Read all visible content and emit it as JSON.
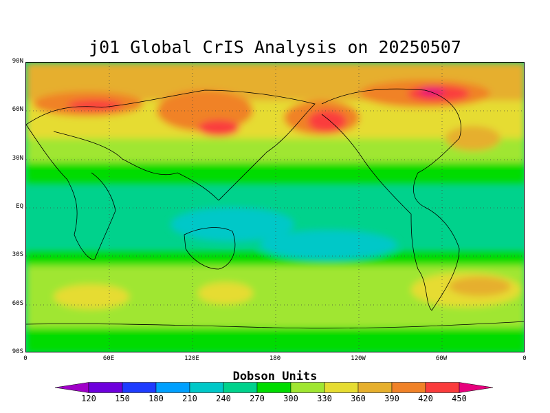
{
  "title": "j01 Global CrIS Analysis on 20250507",
  "map": {
    "lat_labels": [
      "90N",
      "60N",
      "30N",
      "EQ",
      "30S",
      "60S",
      "90S"
    ],
    "lon_labels": [
      "0",
      "60E",
      "120E",
      "180",
      "120W",
      "60W",
      "0"
    ],
    "projection": "equirectangular",
    "grid_lines": "dotted",
    "coastlines": "black"
  },
  "colorbar": {
    "title": "Dobson Units",
    "values": [
      "120",
      "150",
      "180",
      "210",
      "240",
      "270",
      "300",
      "330",
      "360",
      "390",
      "420",
      "450"
    ],
    "colors": [
      "#a000c8",
      "#6e00dc",
      "#1e3cff",
      "#00a0ff",
      "#00c8c8",
      "#00d28c",
      "#00dc00",
      "#a0e632",
      "#e6dc32",
      "#e6af2d",
      "#f08228",
      "#fa3c3c",
      "#e6007d"
    ]
  }
}
